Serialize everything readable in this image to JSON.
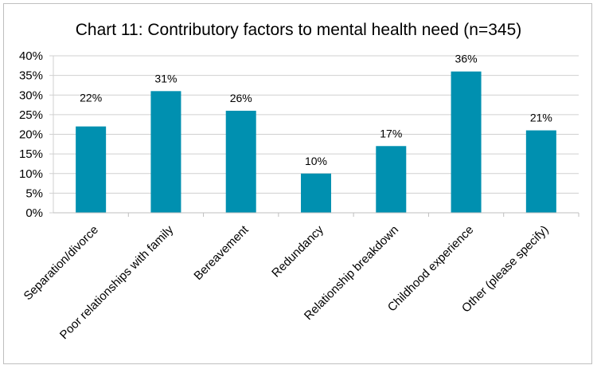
{
  "chart_data": {
    "type": "bar",
    "title": "Chart 11: Contributory factors to mental health need (n=345)",
    "categories": [
      "Separation/divorce",
      "Poor relationships with family",
      "Bereavement",
      "Redundancy",
      "Relationship breakdown",
      "Childhood experience",
      "Other (please specify)"
    ],
    "values": [
      22,
      31,
      26,
      10,
      17,
      36,
      21
    ],
    "data_labels": [
      "22%",
      "31%",
      "26%",
      "10%",
      "17%",
      "36%",
      "21%"
    ],
    "y_ticks": [
      "0%",
      "5%",
      "10%",
      "15%",
      "20%",
      "25%",
      "30%",
      "35%",
      "40%"
    ],
    "ylim": [
      0,
      40
    ],
    "ytick_step": 5,
    "grid": true,
    "legend": "none",
    "bar_color": "#0090b0"
  }
}
